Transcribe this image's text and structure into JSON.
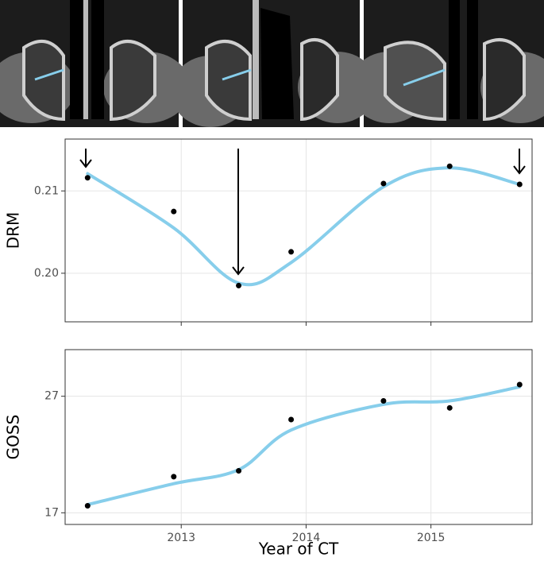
{
  "chart_data": [
    {
      "type": "scatter",
      "y_label": "DRM",
      "x": [
        2012.25,
        2012.94,
        2013.46,
        2013.88,
        2014.62,
        2015.15,
        2015.71
      ],
      "values": [
        0.2116,
        0.2075,
        0.1985,
        0.2026,
        0.2109,
        0.213,
        0.2108
      ],
      "smooth": [
        0.2121,
        0.2055,
        0.1988,
        0.2013,
        0.2105,
        0.2128,
        0.2108
      ],
      "point_color": "#000000",
      "line_color": "#87ceeb",
      "xlim": [
        2012.07,
        2015.81
      ],
      "xticks": [
        2013,
        2014,
        2015
      ],
      "ylim": [
        0.1941,
        0.2163
      ],
      "yticks": [
        {
          "value": 0.2,
          "label": "0.20"
        },
        0.21
      ],
      "grid": true
    },
    {
      "type": "scatter",
      "y_label": "GOSS",
      "x_label": "Year of CT",
      "x": [
        2012.25,
        2012.94,
        2013.46,
        2013.88,
        2014.62,
        2015.15,
        2015.71
      ],
      "values": [
        17.6,
        20.1,
        20.6,
        25.0,
        26.6,
        26.0,
        28.0
      ],
      "smooth": [
        17.7,
        19.5,
        20.7,
        24.1,
        26.3,
        26.6,
        27.8
      ],
      "point_color": "#000000",
      "line_color": "#87ceeb",
      "xlim": [
        2012.07,
        2015.81
      ],
      "xticks": [
        2013,
        2014,
        2015
      ],
      "ylim": [
        16,
        31
      ],
      "yticks": [
        17,
        27
      ],
      "grid": true,
      "xtick_labels": true
    }
  ]
}
